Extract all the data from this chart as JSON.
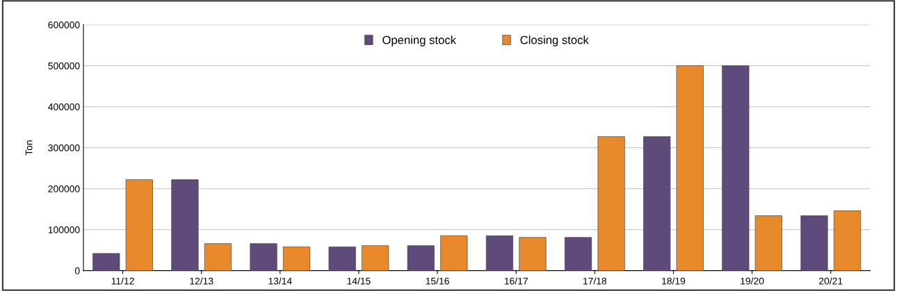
{
  "chart_data": {
    "type": "bar",
    "ylabel": "Ton",
    "categories": [
      "11/12",
      "12/13",
      "13/14",
      "14/15",
      "15/16",
      "16/17",
      "17/18",
      "18/19",
      "19/20",
      "20/21"
    ],
    "series": [
      {
        "name": "Opening stock",
        "color": "#5e4b7c",
        "values": [
          42000,
          222000,
          66000,
          58000,
          61000,
          85000,
          81000,
          327000,
          500000,
          134000
        ]
      },
      {
        "name": "Closing stock",
        "color": "#e8892c",
        "values": [
          222000,
          66000,
          58000,
          61000,
          85000,
          81000,
          327000,
          500000,
          134000,
          146000
        ]
      }
    ],
    "ylim": [
      0,
      600000
    ],
    "yticks": [
      0,
      100000,
      200000,
      300000,
      400000,
      500000,
      600000
    ],
    "grid": "y",
    "legend": "top"
  }
}
